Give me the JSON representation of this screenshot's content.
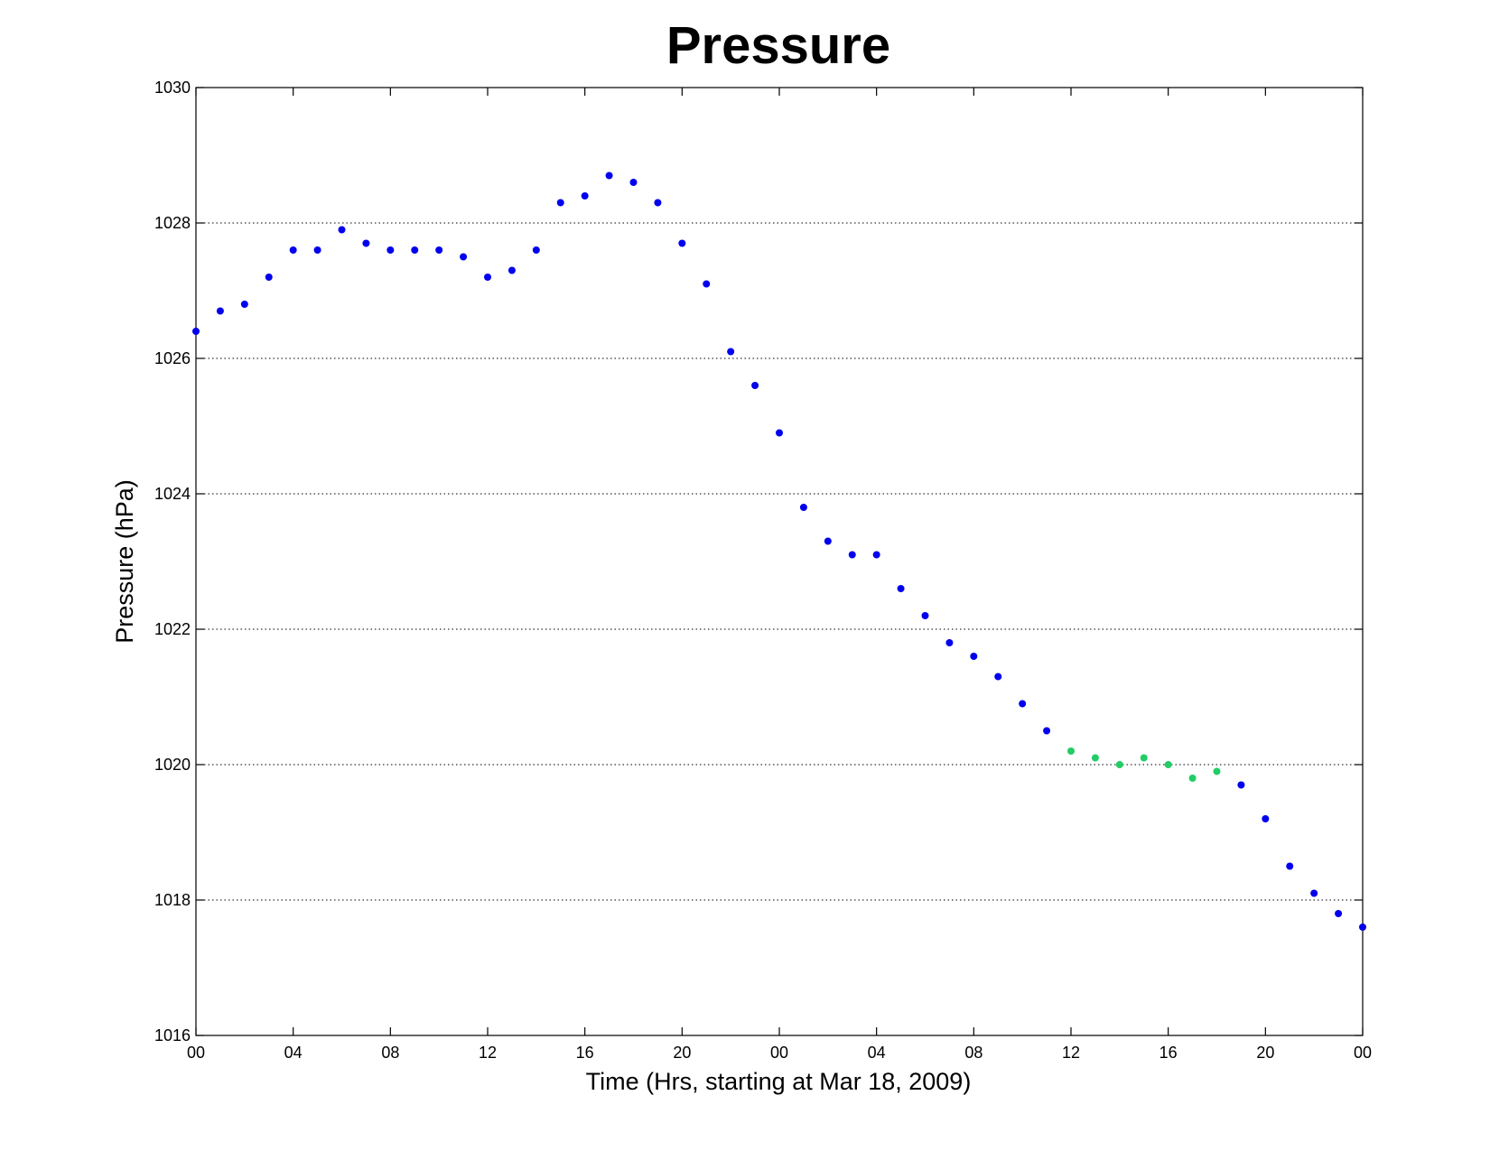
{
  "chart_data": {
    "type": "scatter",
    "title": "Pressure",
    "xlabel": "Time (Hrs, starting at Mar 18, 2009)",
    "ylabel": "Pressure (hPa)",
    "xlim": [
      0,
      48
    ],
    "ylim": [
      1016,
      1030
    ],
    "x_ticks": [
      0,
      4,
      8,
      12,
      16,
      20,
      24,
      28,
      32,
      36,
      40,
      44,
      48
    ],
    "x_tick_labels": [
      "00",
      "04",
      "08",
      "12",
      "16",
      "20",
      "00",
      "04",
      "08",
      "12",
      "16",
      "20",
      "00"
    ],
    "y_ticks": [
      1016,
      1018,
      1020,
      1022,
      1024,
      1026,
      1028,
      1030
    ],
    "y_tick_labels": [
      "1016",
      "1018",
      "1020",
      "1022",
      "1024",
      "1026",
      "1028",
      "1030"
    ],
    "grid": "horizontal dotted",
    "series": [
      {
        "color": "#0000ee",
        "points": [
          [
            0,
            1026.4
          ],
          [
            1,
            1026.7
          ],
          [
            2,
            1026.8
          ],
          [
            3,
            1027.2
          ],
          [
            4,
            1027.6
          ],
          [
            5,
            1027.6
          ],
          [
            6,
            1027.9
          ],
          [
            7,
            1027.7
          ],
          [
            8,
            1027.6
          ],
          [
            9,
            1027.6
          ],
          [
            10,
            1027.6
          ],
          [
            11,
            1027.5
          ],
          [
            12,
            1027.2
          ],
          [
            13,
            1027.3
          ],
          [
            14,
            1027.6
          ],
          [
            15,
            1028.3
          ],
          [
            16,
            1028.4
          ],
          [
            17,
            1028.7
          ],
          [
            18,
            1028.6
          ],
          [
            19,
            1028.3
          ],
          [
            20,
            1027.7
          ],
          [
            21,
            1027.1
          ],
          [
            22,
            1026.1
          ],
          [
            23,
            1025.6
          ],
          [
            24,
            1024.9
          ],
          [
            25,
            1023.8
          ],
          [
            26,
            1023.3
          ],
          [
            27,
            1023.1
          ],
          [
            28,
            1023.1
          ],
          [
            29,
            1022.6
          ],
          [
            30,
            1022.2
          ],
          [
            31,
            1021.8
          ],
          [
            32,
            1021.6
          ],
          [
            33,
            1021.3
          ],
          [
            34,
            1020.9
          ],
          [
            35,
            1020.5
          ],
          [
            43,
            1019.7
          ],
          [
            44,
            1019.2
          ],
          [
            45,
            1018.5
          ],
          [
            46,
            1018.1
          ],
          [
            47,
            1017.8
          ],
          [
            48,
            1017.6
          ]
        ]
      },
      {
        "color": "#22cc66",
        "points": [
          [
            36,
            1020.2
          ],
          [
            37,
            1020.1
          ],
          [
            38,
            1020.0
          ],
          [
            39,
            1020.1
          ],
          [
            40,
            1020.0
          ],
          [
            41,
            1019.8
          ],
          [
            42,
            1019.9
          ]
        ]
      }
    ]
  }
}
